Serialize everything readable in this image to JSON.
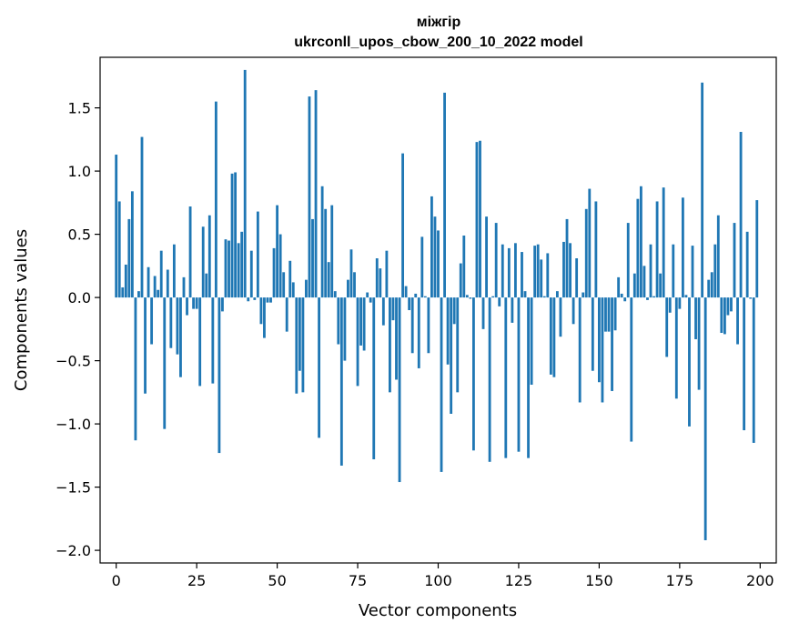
{
  "chart_data": {
    "type": "bar",
    "title": "міжгір",
    "subtitle": "ukrconll_upos_cbow_200_10_2022 model",
    "xlabel": "Vector components",
    "ylabel": "Components values",
    "xlim": [
      -5,
      205
    ],
    "ylim": [
      -2.1,
      1.9
    ],
    "x_ticks": [
      0,
      25,
      50,
      75,
      100,
      125,
      150,
      175,
      200
    ],
    "x_tick_labels": [
      "0",
      "25",
      "50",
      "75",
      "100",
      "125",
      "150",
      "175",
      "200"
    ],
    "y_ticks": [
      -2.0,
      -1.5,
      -1.0,
      -0.5,
      0.0,
      0.5,
      1.0,
      1.5
    ],
    "y_tick_labels": [
      "−2.0",
      "−1.5",
      "−1.0",
      "−0.5",
      "0.0",
      "0.5",
      "1.0",
      "1.5"
    ],
    "bar_color": "#1f77b4",
    "grid": false,
    "x": [
      0,
      1,
      2,
      3,
      4,
      5,
      6,
      7,
      8,
      9,
      10,
      11,
      12,
      13,
      14,
      15,
      16,
      17,
      18,
      19,
      20,
      21,
      22,
      23,
      24,
      25,
      26,
      27,
      28,
      29,
      30,
      31,
      32,
      33,
      34,
      35,
      36,
      37,
      38,
      39,
      40,
      41,
      42,
      43,
      44,
      45,
      46,
      47,
      48,
      49,
      50,
      51,
      52,
      53,
      54,
      55,
      56,
      57,
      58,
      59,
      60,
      61,
      62,
      63,
      64,
      65,
      66,
      67,
      68,
      69,
      70,
      71,
      72,
      73,
      74,
      75,
      76,
      77,
      78,
      79,
      80,
      81,
      82,
      83,
      84,
      85,
      86,
      87,
      88,
      89,
      90,
      91,
      92,
      93,
      94,
      95,
      96,
      97,
      98,
      99,
      100,
      101,
      102,
      103,
      104,
      105,
      106,
      107,
      108,
      109,
      110,
      111,
      112,
      113,
      114,
      115,
      116,
      117,
      118,
      119,
      120,
      121,
      122,
      123,
      124,
      125,
      126,
      127,
      128,
      129,
      130,
      131,
      132,
      133,
      134,
      135,
      136,
      137,
      138,
      139,
      140,
      141,
      142,
      143,
      144,
      145,
      146,
      147,
      148,
      149,
      150,
      151,
      152,
      153,
      154,
      155,
      156,
      157,
      158,
      159,
      160,
      161,
      162,
      163,
      164,
      165,
      166,
      167,
      168,
      169,
      170,
      171,
      172,
      173,
      174,
      175,
      176,
      177,
      178,
      179,
      180,
      181,
      182,
      183,
      184,
      185,
      186,
      187,
      188,
      189,
      190,
      191,
      192,
      193,
      194,
      195,
      196,
      197,
      198,
      199
    ],
    "values": [
      1.13,
      0.76,
      0.08,
      0.26,
      0.62,
      0.84,
      -1.13,
      0.05,
      1.27,
      -0.76,
      0.24,
      -0.37,
      0.17,
      0.06,
      0.37,
      -1.04,
      0.22,
      -0.4,
      0.42,
      -0.45,
      -0.63,
      0.16,
      -0.14,
      0.72,
      -0.09,
      -0.09,
      -0.7,
      0.56,
      0.19,
      0.65,
      -0.68,
      1.55,
      -1.23,
      -0.11,
      0.46,
      0.45,
      0.98,
      0.99,
      0.43,
      0.52,
      1.8,
      -0.03,
      0.37,
      -0.02,
      0.68,
      -0.21,
      -0.32,
      -0.04,
      -0.04,
      0.39,
      0.73,
      0.5,
      0.2,
      -0.27,
      0.29,
      0.12,
      -0.76,
      -0.58,
      -0.75,
      0.14,
      1.59,
      0.62,
      1.64,
      -1.11,
      0.88,
      0.7,
      0.28,
      0.73,
      0.05,
      -0.37,
      -1.33,
      -0.5,
      0.14,
      0.38,
      0.2,
      -0.7,
      -0.38,
      -0.42,
      0.04,
      -0.04,
      -1.28,
      0.31,
      0.23,
      -0.22,
      0.37,
      -0.75,
      -0.18,
      -0.65,
      -1.46,
      1.14,
      0.09,
      -0.1,
      -0.44,
      0.03,
      -0.56,
      0.48,
      0.01,
      -0.44,
      0.8,
      0.64,
      0.53,
      -1.38,
      1.62,
      -0.53,
      -0.92,
      -0.21,
      -0.75,
      0.27,
      0.49,
      0.02,
      -0.01,
      -1.21,
      1.23,
      1.24,
      -0.25,
      0.64,
      -1.3,
      0.01,
      0.59,
      -0.07,
      0.42,
      -1.27,
      0.39,
      -0.2,
      0.43,
      -1.22,
      0.36,
      0.05,
      -1.27,
      -0.69,
      0.41,
      0.42,
      0.3,
      0.01,
      0.35,
      -0.61,
      -0.63,
      0.05,
      -0.31,
      0.44,
      0.62,
      0.43,
      -0.21,
      0.31,
      -0.83,
      0.04,
      0.7,
      0.86,
      -0.58,
      0.76,
      -0.67,
      -0.83,
      -0.27,
      -0.27,
      -0.74,
      -0.26,
      0.16,
      0.03,
      -0.03,
      0.59,
      -1.14,
      0.19,
      0.78,
      0.88,
      0.25,
      -0.02,
      0.42,
      0.01,
      0.76,
      0.19,
      0.87,
      -0.47,
      -0.12,
      0.42,
      -0.8,
      -0.09,
      0.79,
      0.02,
      -1.02,
      0.41,
      -0.33,
      -0.73,
      1.7,
      -1.92,
      0.14,
      0.2,
      0.42,
      0.65,
      -0.28,
      -0.29,
      -0.14,
      -0.11,
      0.59,
      -0.37,
      1.31,
      -1.05,
      0.52,
      -0.01,
      -1.15,
      0.77
    ]
  }
}
